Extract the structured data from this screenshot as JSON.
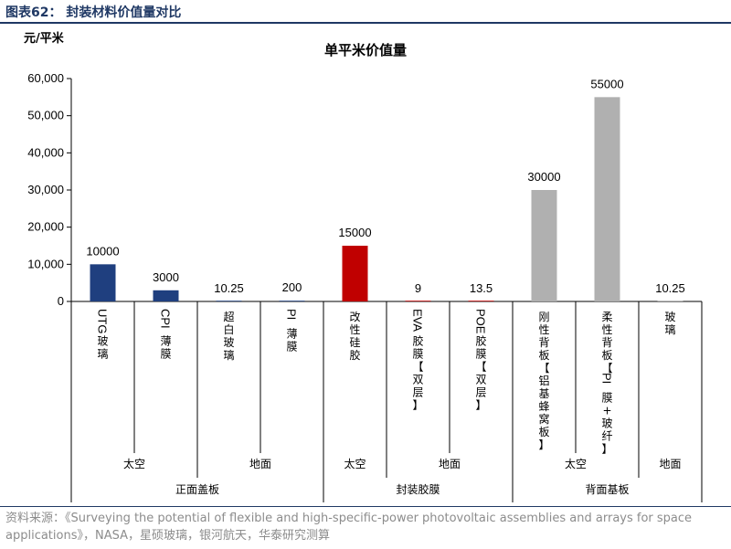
{
  "figure": {
    "title": "图表62：  封装材料价值量对比",
    "source": "资料来源：《Surveying the potential of flexible and high-specific-power photovoltaic assemblies and arrays for space applications》，NASA，星硕玻璃，银河航天，华泰研究测算"
  },
  "chart_data": {
    "type": "bar",
    "title": "单平米价值量",
    "ylabel": "元/平米",
    "ylim": [
      0,
      60000
    ],
    "yticks": [
      "0",
      "10,000",
      "20,000",
      "30,000",
      "40,000",
      "50,000",
      "60,000"
    ],
    "ytick_values": [
      0,
      10000,
      20000,
      30000,
      40000,
      50000,
      60000
    ],
    "grid": false,
    "categories": [
      "UTG玻璃",
      "CPI薄膜",
      "超白玻璃",
      "PI薄膜",
      "改性硅胶",
      "EVA胶膜【双层】",
      "POE胶膜【双层】",
      "刚性背板【铝基蜂窝板】",
      "柔性背板【PI膜+玻纤】",
      "玻璃"
    ],
    "category_label_lines": [
      [
        "UTG",
        "玻",
        "璃"
      ],
      [
        "CPI",
        "薄",
        "膜"
      ],
      [
        "超",
        "白",
        "玻",
        "璃"
      ],
      [
        "PI",
        "薄",
        "膜"
      ],
      [
        "改",
        "性",
        "硅",
        "胶"
      ],
      [
        "EVA",
        "胶",
        "膜",
        "【",
        "双",
        "层",
        "】"
      ],
      [
        "POE",
        "胶",
        "膜",
        "【",
        "双",
        "层",
        "】"
      ],
      [
        "刚",
        "性",
        "背",
        "板",
        "【",
        "铝",
        "基",
        "蜂",
        "窝",
        "板",
        "】"
      ],
      [
        "柔",
        "性",
        "背",
        "板",
        "【",
        "PI",
        "膜",
        "+",
        "玻",
        "纤",
        "】"
      ],
      [
        "玻",
        "璃"
      ]
    ],
    "values": [
      10000,
      3000,
      10.25,
      200,
      15000,
      9,
      13.5,
      30000,
      55000,
      10.25
    ],
    "data_labels": [
      "10000",
      "3000",
      "10.25",
      "200",
      "15000",
      "9",
      "13.5",
      "30000",
      "55000",
      "10.25"
    ],
    "bar_colors": [
      "#1f3f7f",
      "#1f3f7f",
      "#1f3f7f",
      "#1f3f7f",
      "#c00000",
      "#c00000",
      "#c00000",
      "#b0b0b0",
      "#b0b0b0",
      "#b0b0b0"
    ],
    "groups_level1": [
      {
        "label": "太空",
        "start": 0,
        "end": 2
      },
      {
        "label": "地面",
        "start": 2,
        "end": 4
      },
      {
        "label": "太空",
        "start": 4,
        "end": 5
      },
      {
        "label": "地面",
        "start": 5,
        "end": 7
      },
      {
        "label": "太空",
        "start": 7,
        "end": 9
      },
      {
        "label": "地面",
        "start": 9,
        "end": 10
      }
    ],
    "groups_level2": [
      {
        "label": "正面盖板",
        "start": 0,
        "end": 4
      },
      {
        "label": "封装胶膜",
        "start": 4,
        "end": 7
      },
      {
        "label": "背面基板",
        "start": 7,
        "end": 10
      }
    ]
  }
}
